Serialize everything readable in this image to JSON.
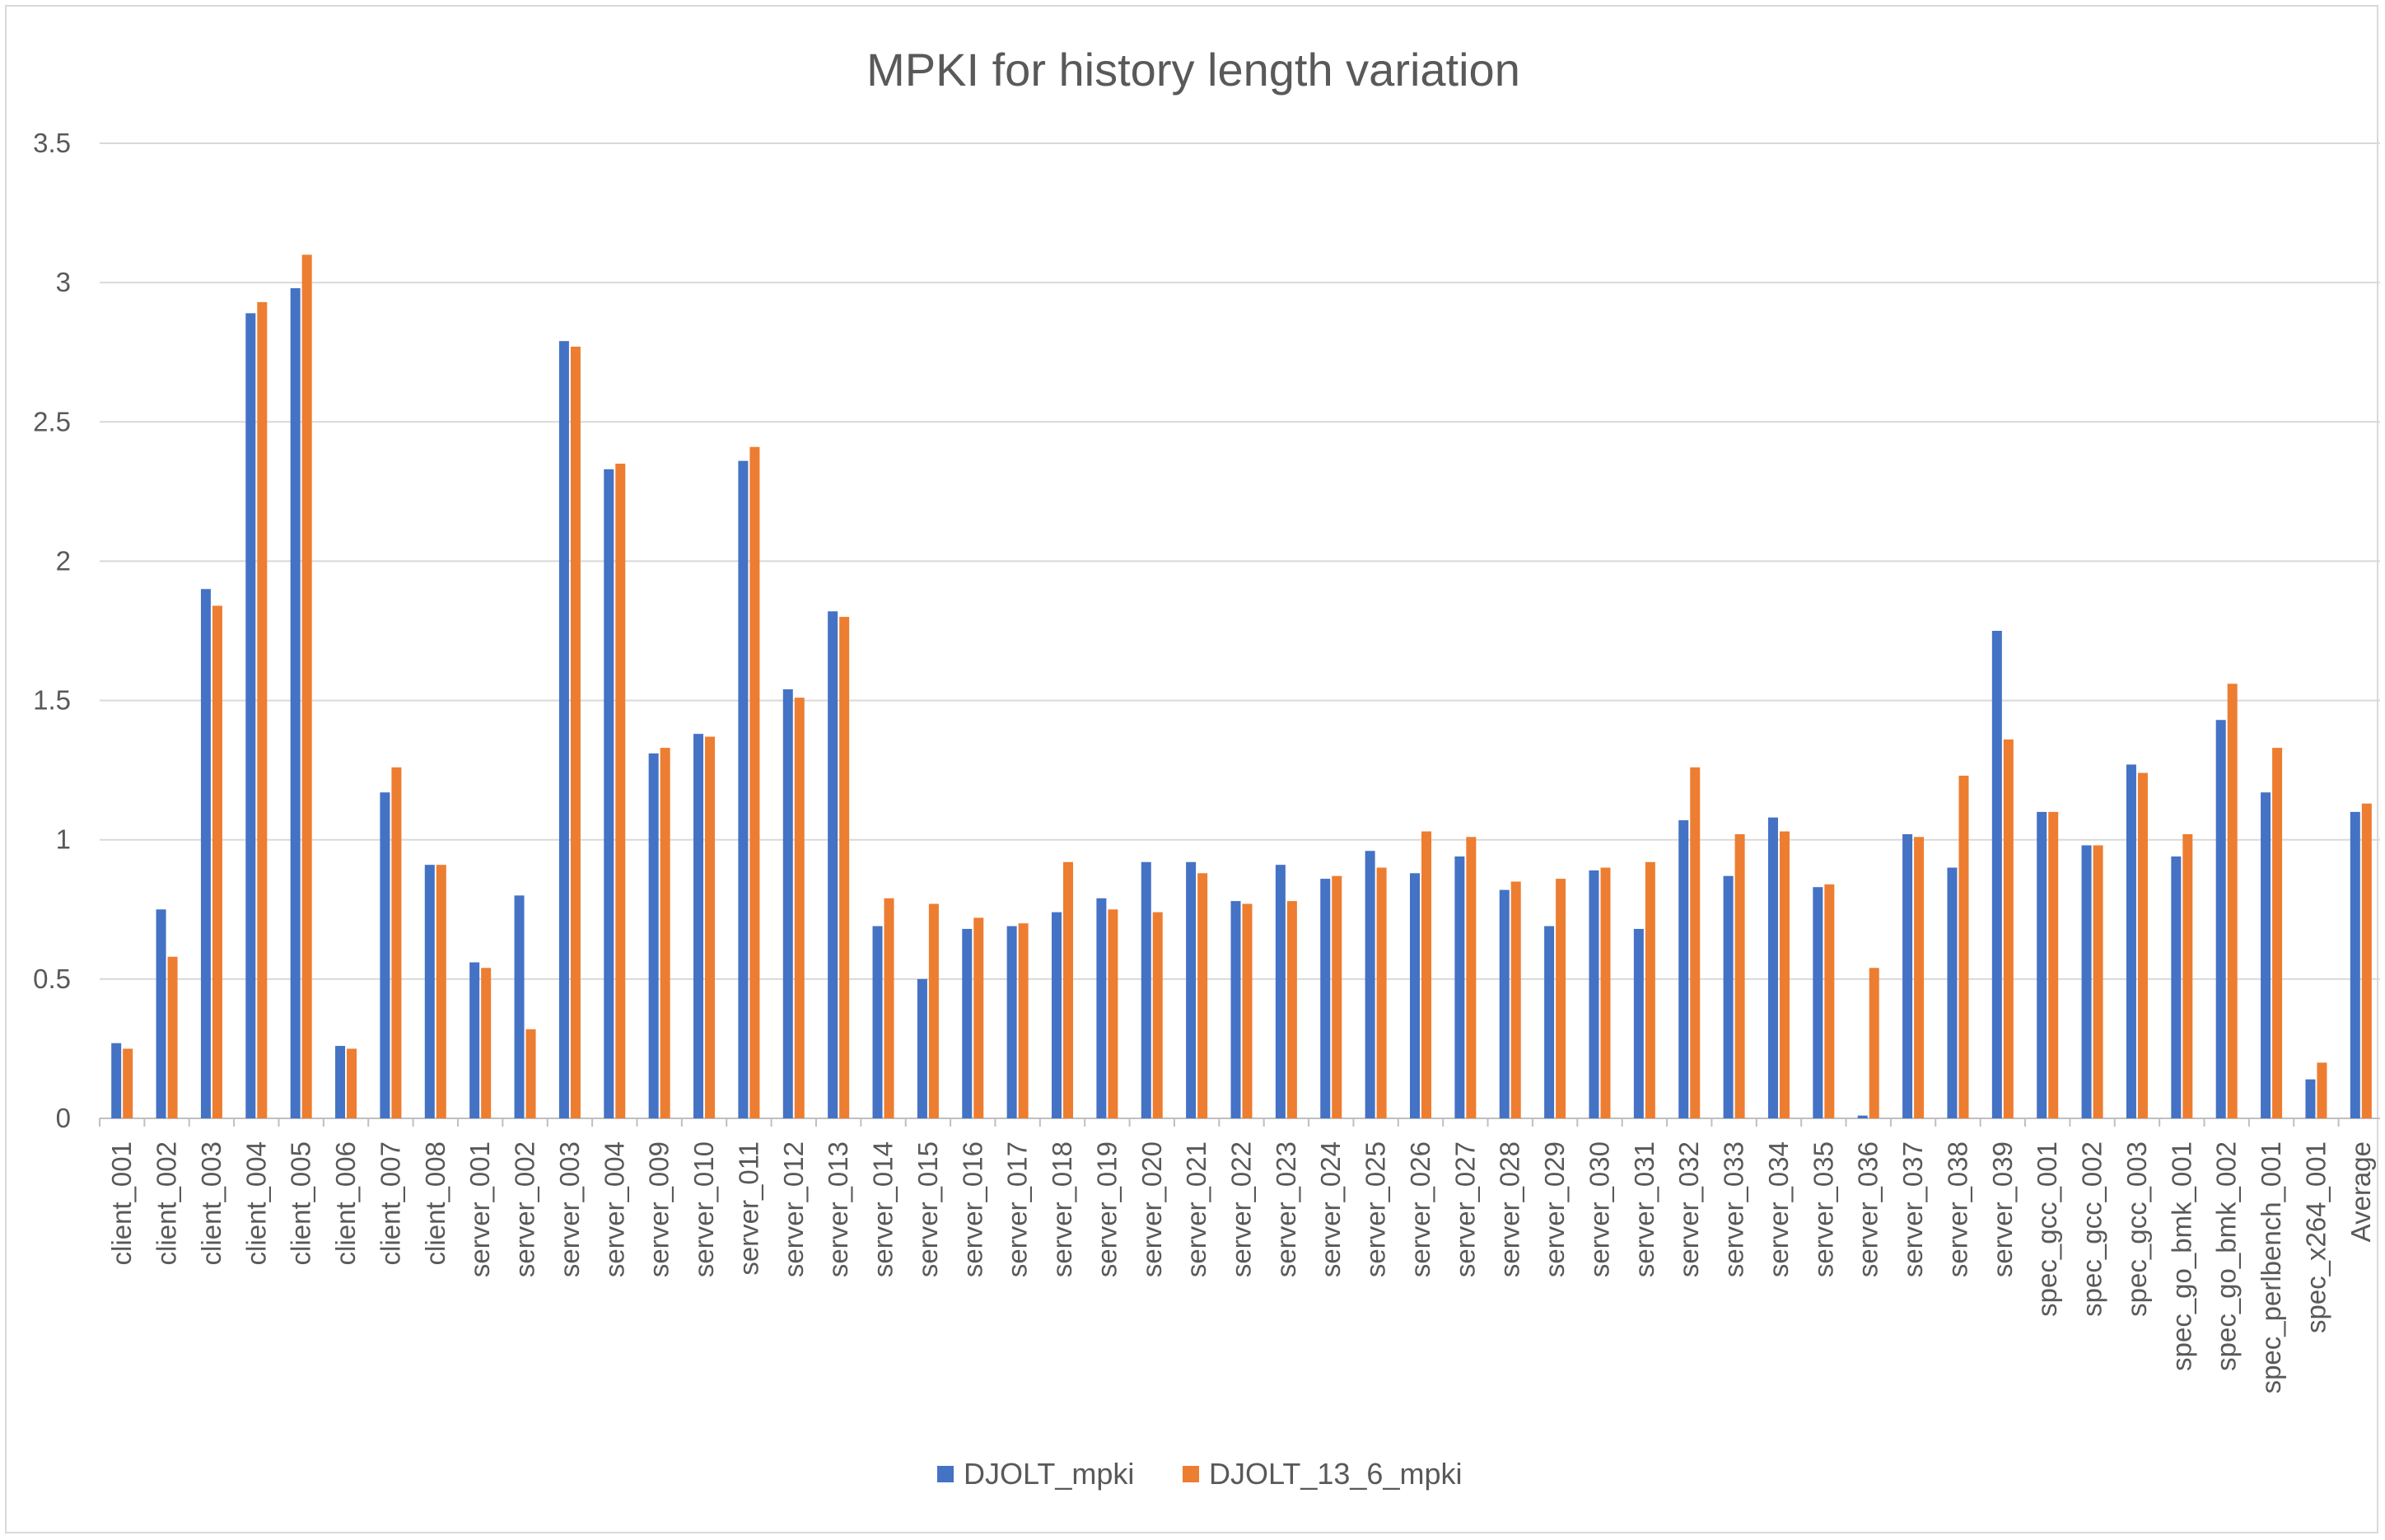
{
  "chart_data": {
    "type": "bar",
    "title": "MPKI for history length variation",
    "xlabel": "",
    "ylabel": "",
    "ylim": [
      0,
      3.5
    ],
    "yticks": [
      "0",
      "0.5",
      "1",
      "1.5",
      "2",
      "2.5",
      "3",
      "3.5"
    ],
    "grid": true,
    "legend_position": "bottom",
    "categories": [
      "client_001",
      "client_002",
      "client_003",
      "client_004",
      "client_005",
      "client_006",
      "client_007",
      "client_008",
      "server_001",
      "server_002",
      "server_003",
      "server_004",
      "server_009",
      "server_010",
      "server_011",
      "server_012",
      "server_013",
      "server_014",
      "server_015",
      "server_016",
      "server_017",
      "server_018",
      "server_019",
      "server_020",
      "server_021",
      "server_022",
      "server_023",
      "server_024",
      "server_025",
      "server_026",
      "server_027",
      "server_028",
      "server_029",
      "server_030",
      "server_031",
      "server_032",
      "server_033",
      "server_034",
      "server_035",
      "server_036",
      "server_037",
      "server_038",
      "server_039",
      "spec_gcc_001",
      "spec_gcc_002",
      "spec_gcc_003",
      "spec_go_bmk_001",
      "spec_go_bmk_002",
      "spec_perlbench_001",
      "spec_x264_001",
      "Average"
    ],
    "series": [
      {
        "name": "DJOLT_mpki",
        "color": "#4472c4",
        "values": [
          0.27,
          0.75,
          1.9,
          2.89,
          2.98,
          0.26,
          1.17,
          0.91,
          0.56,
          0.8,
          2.79,
          2.33,
          1.31,
          1.38,
          2.36,
          1.54,
          1.82,
          0.69,
          0.5,
          0.68,
          0.69,
          0.74,
          0.79,
          0.92,
          0.92,
          0.78,
          0.91,
          0.86,
          0.96,
          0.88,
          0.94,
          0.82,
          0.69,
          0.89,
          0.68,
          1.07,
          0.87,
          1.08,
          0.83,
          0.01,
          1.02,
          0.9,
          1.75,
          1.1,
          0.98,
          1.27,
          0.94,
          1.43,
          1.17,
          0.14,
          1.1
        ]
      },
      {
        "name": "DJOLT_13_6_mpki",
        "color": "#ed7d31",
        "values": [
          0.25,
          0.58,
          1.84,
          2.93,
          3.1,
          0.25,
          1.26,
          0.91,
          0.54,
          0.32,
          2.77,
          2.35,
          1.33,
          1.37,
          2.41,
          1.51,
          1.8,
          0.79,
          0.77,
          0.72,
          0.7,
          0.92,
          0.75,
          0.74,
          0.88,
          0.77,
          0.78,
          0.87,
          0.9,
          1.03,
          1.01,
          0.85,
          0.86,
          0.9,
          0.92,
          1.26,
          1.02,
          1.03,
          0.84,
          0.54,
          1.01,
          1.23,
          1.36,
          1.1,
          0.98,
          1.24,
          1.02,
          1.56,
          1.33,
          0.2,
          1.13
        ]
      }
    ]
  }
}
